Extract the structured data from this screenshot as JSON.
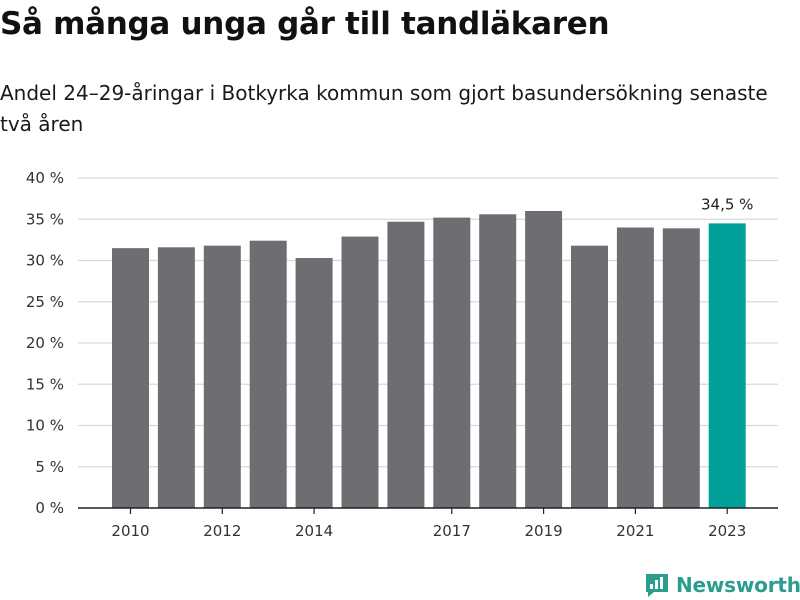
{
  "header": {
    "title": "Så många unga går till tandläkaren",
    "subtitle": "Andel 24–29-åringar i Botkyrka kommun som gjort basundersökning senaste två åren"
  },
  "branding": {
    "logo_text": "Newsworthy",
    "logo_icon": "bar-chart-icon"
  },
  "colors": {
    "bar": "#6d6d72",
    "highlight": "#00a19a",
    "grid": "#d9d9d9",
    "axis": "#222222",
    "logo": "#2a9d8f"
  },
  "chart_data": {
    "type": "bar",
    "x": [
      2010,
      2011,
      2012,
      2013,
      2014,
      2015,
      2016,
      2017,
      2018,
      2019,
      2020,
      2021,
      2022,
      2023
    ],
    "values": [
      31.5,
      31.6,
      31.8,
      32.4,
      30.3,
      32.9,
      34.7,
      35.2,
      35.6,
      36.0,
      31.8,
      34.0,
      33.9,
      34.5
    ],
    "x_tick_labels": [
      "2010",
      "",
      "2012",
      "",
      "2014",
      "",
      "",
      "2017",
      "",
      "2019",
      "",
      "2021",
      "",
      "2023"
    ],
    "y_ticks": [
      "0 %",
      "5 %",
      "10 %",
      "15 %",
      "20 %",
      "25 %",
      "30 %",
      "35 %",
      "40 %"
    ],
    "ylim": [
      0,
      40
    ],
    "highlight_index": 13,
    "highlight_label": "34,5 %",
    "grid": true,
    "xlabel": "",
    "ylabel": ""
  }
}
